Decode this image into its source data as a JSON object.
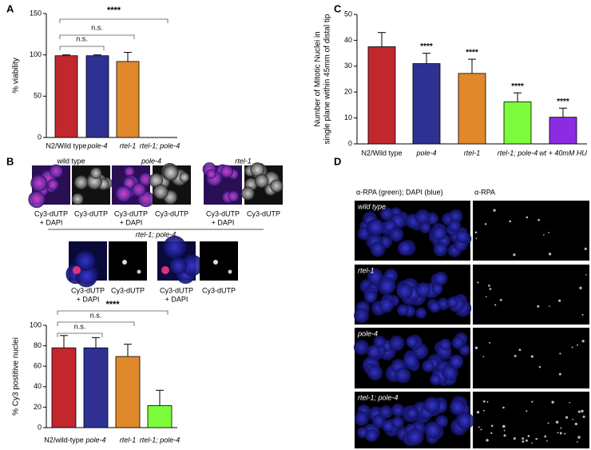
{
  "panel_labels": [
    "A",
    "B",
    "C",
    "D"
  ],
  "chart_data": [
    {
      "type": "bar",
      "ylabel": "% viability",
      "categories": [
        "N2/Wild type",
        "pole-4",
        "rtel-1",
        "rtel-1; pole-4"
      ],
      "values": [
        99,
        99,
        92,
        0
      ],
      "errors": [
        1,
        1,
        11,
        0
      ],
      "colors": [
        "#c1272d",
        "#2e3192",
        "#e0892a",
        "#7cfc3c"
      ],
      "ylim": [
        0,
        150
      ],
      "yticks": [
        0,
        50,
        100,
        150
      ],
      "brackets": [
        "****",
        "n.s.",
        "n.s."
      ]
    },
    {
      "type": "bar",
      "ylabel": "% Cy3 postitive nuclei",
      "categories": [
        "N2/wild-type",
        "pole-4",
        "rtel-1",
        "rtel-1; pole-4"
      ],
      "values": [
        78,
        78,
        69.5,
        21.5
      ],
      "errors": [
        12,
        10,
        12,
        15
      ],
      "colors": [
        "#c1272d",
        "#2e3192",
        "#e0892a",
        "#7cfc3c"
      ],
      "ylim": [
        0,
        100
      ],
      "yticks": [
        0,
        20,
        40,
        60,
        80,
        100
      ],
      "brackets": [
        "****",
        "n.s.",
        "n.s."
      ]
    },
    {
      "type": "bar",
      "ylabel": [
        "Number of Mitotic Nuclei in",
        "single plane within 45mm of distal tip"
      ],
      "categories": [
        "N2/Wild type",
        "pole-4",
        "rtel-1",
        "rtel-1; pole-4",
        "wt + 40mM HU"
      ],
      "values": [
        37.5,
        31,
        27.2,
        16.2,
        10.3
      ],
      "errors": [
        5.5,
        4,
        5.5,
        3.5,
        3.5
      ],
      "colors": [
        "#c1272d",
        "#2e3192",
        "#e0892a",
        "#7cfc3c",
        "#8b2be2"
      ],
      "ylim": [
        0,
        50
      ],
      "yticks": [
        0,
        10,
        20,
        30,
        40,
        50
      ],
      "annotations": [
        null,
        "****",
        "****",
        "****",
        "****"
      ]
    }
  ],
  "figure_b_images": {
    "groups": [
      "wild type",
      "pole-4",
      "rtel-1"
    ],
    "double_mutant": "rtel-1; pole-4",
    "caption_merge": [
      "Cy3-dUTP",
      "+ DAPI"
    ],
    "caption_single": "Cy3-dUTP"
  },
  "figure_d": {
    "column_headers": [
      "α-RPA (green); DAPI (blue)",
      "α-RPA"
    ],
    "rows": [
      "wild type",
      "rtel-1",
      "pole-4",
      "rtel-1; pole-4"
    ]
  }
}
